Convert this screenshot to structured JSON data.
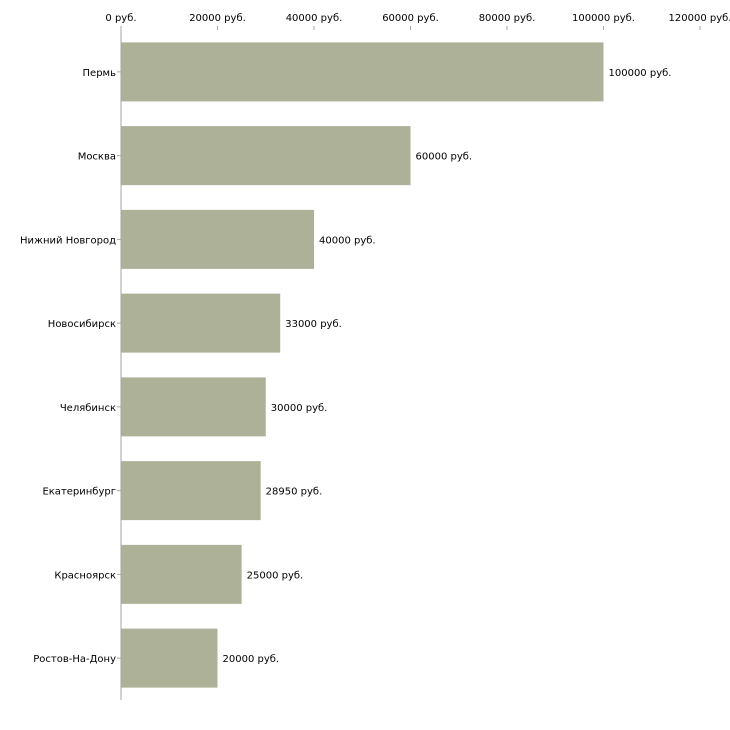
{
  "chart_data": {
    "type": "bar",
    "orientation": "horizontal",
    "title": "",
    "xlabel": "",
    "ylabel": "",
    "xlim": [
      0,
      120000
    ],
    "x_ticks": [
      0,
      20000,
      40000,
      60000,
      80000,
      100000,
      120000
    ],
    "x_tick_labels": [
      "0 руб.",
      "20000 руб.",
      "40000 руб.",
      "60000 руб.",
      "80000 руб.",
      "100000 руб.",
      "120000 руб."
    ],
    "x_axis_position": "top",
    "grid": false,
    "legend": "none",
    "bar_color": "#adb197",
    "categories": [
      "Пермь",
      "Москва",
      "Нижний Новгород",
      "Новосибирск",
      "Челябинск",
      "Екатеринбург",
      "Красноярск",
      "Ростов-На-Дону"
    ],
    "values": [
      100000,
      60000,
      40000,
      33000,
      30000,
      28950,
      25000,
      20000
    ],
    "data_labels": [
      "100000 руб.",
      "60000 руб.",
      "40000 руб.",
      "33000 руб.",
      "30000 руб.",
      "28950 руб.",
      "25000 руб.",
      "20000 руб."
    ]
  }
}
